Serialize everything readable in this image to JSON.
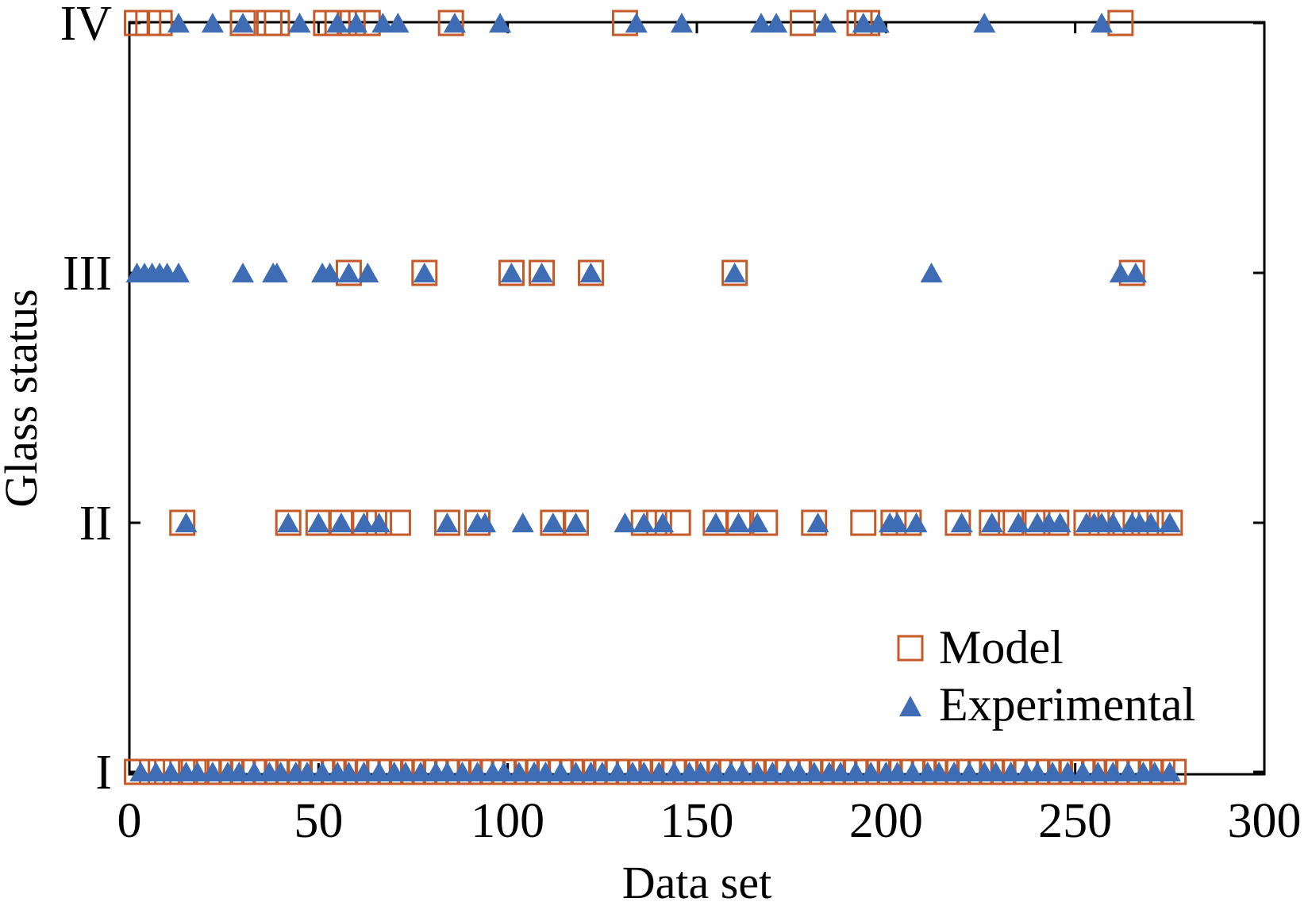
{
  "chart_data": {
    "type": "scatter",
    "xlabel": "Data set",
    "ylabel": "Glass status",
    "xlim": [
      0,
      300
    ],
    "x_ticks": [
      0,
      50,
      100,
      150,
      200,
      250,
      300
    ],
    "y_categories": [
      "I",
      "II",
      "III",
      "IV"
    ],
    "grid": false,
    "legend_position": "bottom-right",
    "colors": {
      "model": "#C55A28",
      "experimental": "#3E6DB5"
    },
    "series": [
      {
        "name": "Model",
        "marker": "open-square",
        "points": [
          {
            "status": "IV",
            "x": [
              2,
              5,
              8,
              30,
              37,
              39,
              52,
              55,
              59,
              63,
              85,
              131,
              178,
              193,
              195,
              262
            ]
          },
          {
            "status": "III",
            "x": [
              58,
              78,
              101,
              109,
              122,
              160,
              265
            ]
          },
          {
            "status": "II",
            "x": [
              14,
              42,
              50,
              56,
              62,
              66,
              71,
              84,
              92,
              112,
              118,
              136,
              140,
              145,
              155,
              161,
              168,
              181,
              194,
              202,
              206,
              219,
              228,
              233,
              240,
              245,
              253,
              257,
              262,
              266,
              270,
              275
            ]
          },
          {
            "status": "I",
            "x": [
              2,
              6,
              10,
              14,
              17,
              21,
              24,
              27,
              30,
              33,
              36,
              39,
              42,
              45,
              48,
              51,
              54,
              57,
              60,
              63,
              66,
              69,
              72,
              75,
              78,
              81,
              84,
              87,
              90,
              93,
              96,
              99,
              102,
              105,
              108,
              111,
              114,
              117,
              120,
              123,
              126,
              129,
              132,
              135,
              138,
              141,
              144,
              147,
              150,
              153,
              156,
              159,
              162,
              165,
              168,
              171,
              174,
              177,
              180,
              183,
              186,
              189,
              192,
              195,
              198,
              201,
              204,
              207,
              210,
              213,
              216,
              219,
              222,
              225,
              228,
              231,
              234,
              237,
              240,
              243,
              246,
              249,
              252,
              255,
              258,
              261,
              264,
              267,
              270,
              273,
              276
            ]
          }
        ]
      },
      {
        "name": "Experimental",
        "marker": "filled-triangle",
        "points": [
          {
            "status": "IV",
            "x": [
              13,
              22,
              30,
              45,
              55,
              60,
              67,
              71,
              86,
              98,
              134,
              146,
              167,
              171,
              184,
              194,
              198,
              226,
              257
            ]
          },
          {
            "status": "III",
            "x": [
              2,
              4,
              6,
              8,
              10,
              13,
              30,
              38,
              39,
              51,
              53,
              58,
              63,
              78,
              101,
              109,
              122,
              160,
              212,
              262,
              266
            ]
          },
          {
            "status": "II",
            "x": [
              15,
              42,
              50,
              56,
              62,
              66,
              84,
              92,
              94,
              104,
              112,
              118,
              131,
              136,
              141,
              155,
              161,
              166,
              182,
              201,
              203,
              208,
              220,
              228,
              235,
              240,
              243,
              246,
              253,
              255,
              257,
              260,
              265,
              267,
              270,
              275
            ]
          },
          {
            "status": "I",
            "x": [
              3,
              7,
              11,
              15,
              18,
              22,
              26,
              29,
              33,
              37,
              40,
              44,
              47,
              51,
              55,
              58,
              62,
              66,
              70,
              73,
              77,
              81,
              84,
              88,
              92,
              96,
              99,
              103,
              107,
              110,
              114,
              118,
              122,
              125,
              129,
              133,
              136,
              140,
              144,
              148,
              151,
              155,
              159,
              162,
              166,
              170,
              174,
              177,
              181,
              185,
              188,
              192,
              196,
              200,
              203,
              207,
              211,
              214,
              218,
              222,
              226,
              229,
              233,
              237,
              240,
              244,
              248,
              252,
              256,
              260,
              264,
              268,
              271,
              275
            ]
          }
        ]
      }
    ],
    "legend": [
      "Model",
      "Experimental"
    ]
  }
}
